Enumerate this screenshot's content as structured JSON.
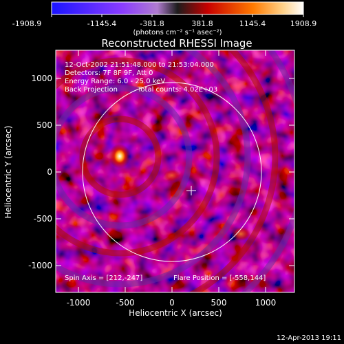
{
  "colorbar": {
    "ticks": [
      "-1908.9",
      "-1145.4",
      "-381.8",
      "381.8",
      "1145.4",
      "1908.9"
    ],
    "unit_label": "(photons cm⁻² s⁻¹ asec⁻²)",
    "colors": [
      "#1a14ff",
      "#8a3cff",
      "#b07cd0",
      "#1c1c1c",
      "#c80000",
      "#ff7a00",
      "#ffd28a",
      "#ffffff"
    ]
  },
  "title": "Reconstructed RHESSI Image",
  "annotations": {
    "time": "12-Oct-2002 21:51:48.000 to 21:53:04.000",
    "detectors": "Detectors: 7F 8F 9F, Att 0",
    "energy": "Energy Range: 6.0 - 25.0 keV",
    "method": "Back Projection",
    "counts": "Total counts: 4.02E+03",
    "spin_axis": "Spin Axis = [212,-247]",
    "flare_position": "Flare Position = [-558,144]"
  },
  "axes": {
    "xlabel": "Heliocentric X (arcsec)",
    "ylabel": "Heliocentric Y (arcsec)",
    "xticks": [
      "-1000",
      "-500",
      "0",
      "500",
      "1000"
    ],
    "yticks": [
      "1000",
      "500",
      "0",
      "-500",
      "-1000"
    ]
  },
  "footer": {
    "timestamp": "12-Apr-2013 19:11"
  }
}
